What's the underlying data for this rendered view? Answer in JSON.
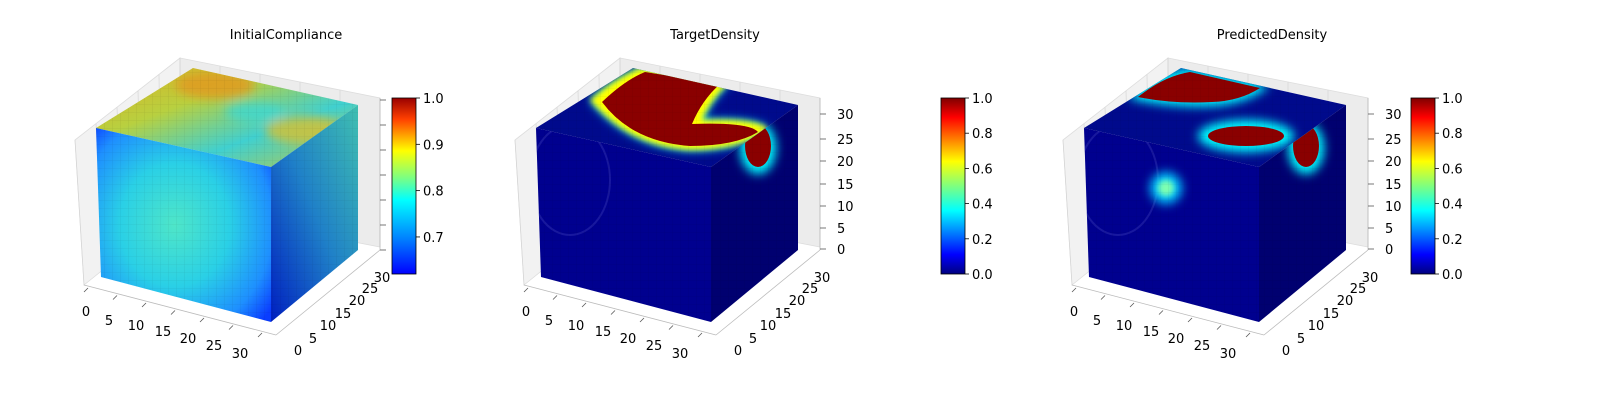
{
  "figure": {
    "colormap": "jet",
    "colormap_stops": [
      "#00007f",
      "#0000ff",
      "#007fff",
      "#00ffff",
      "#7fff7f",
      "#ffff00",
      "#ff7f00",
      "#ff0000",
      "#7f0000"
    ]
  },
  "chart_data": [
    {
      "type": "heatmap",
      "subtype": "3d-voxel-cube",
      "title": "InitialCompliance",
      "x_ticks": [
        "0",
        "5",
        "10",
        "15",
        "20",
        "25",
        "30"
      ],
      "y_ticks": [
        "0",
        "5",
        "10",
        "15",
        "20",
        "25",
        "30"
      ],
      "z_ticks": [],
      "colorbar": {
        "ticks": [
          "0.7",
          "0.8",
          "0.9",
          "1.0"
        ],
        "range": [
          0.62,
          1.0
        ]
      },
      "faces": {
        "top": "yellow-orange patches",
        "front": "cyan center fading to blue edges",
        "side": "dark blue to cyan"
      },
      "grid_size": 32
    },
    {
      "type": "heatmap",
      "subtype": "3d-voxel-cube",
      "title": "TargetDensity",
      "x_ticks": [
        "0",
        "5",
        "10",
        "15",
        "20",
        "25",
        "30"
      ],
      "y_ticks": [
        "0",
        "5",
        "10",
        "15",
        "20",
        "25",
        "30"
      ],
      "z_ticks": [
        "0",
        "5",
        "10",
        "15",
        "20",
        "25",
        "30"
      ],
      "colorbar": {
        "ticks": [
          "0.0",
          "0.2",
          "0.4",
          "0.6",
          "0.8",
          "1.0"
        ],
        "range": [
          0.0,
          1.0
        ]
      },
      "faces": {
        "top": "red L-shaped high-density region",
        "front": "dark blue",
        "side": "dark blue with red blob near top"
      },
      "grid_size": 32
    },
    {
      "type": "heatmap",
      "subtype": "3d-voxel-cube",
      "title": "PredictedDensity",
      "x_ticks": [
        "0",
        "5",
        "10",
        "15",
        "20",
        "25",
        "30"
      ],
      "y_ticks": [
        "0",
        "5",
        "10",
        "15",
        "20",
        "25",
        "30"
      ],
      "z_ticks": [
        "0",
        "5",
        "10",
        "15",
        "20",
        "25",
        "30"
      ],
      "colorbar": {
        "ticks": [
          "0.0",
          "0.2",
          "0.4",
          "0.6",
          "0.8",
          "1.0"
        ],
        "range": [
          0.0,
          1.0
        ]
      },
      "faces": {
        "top": "red regions along back edge and right",
        "front": "dark blue with cyan spot",
        "side": "dark blue with red blob near top"
      },
      "grid_size": 32
    }
  ]
}
